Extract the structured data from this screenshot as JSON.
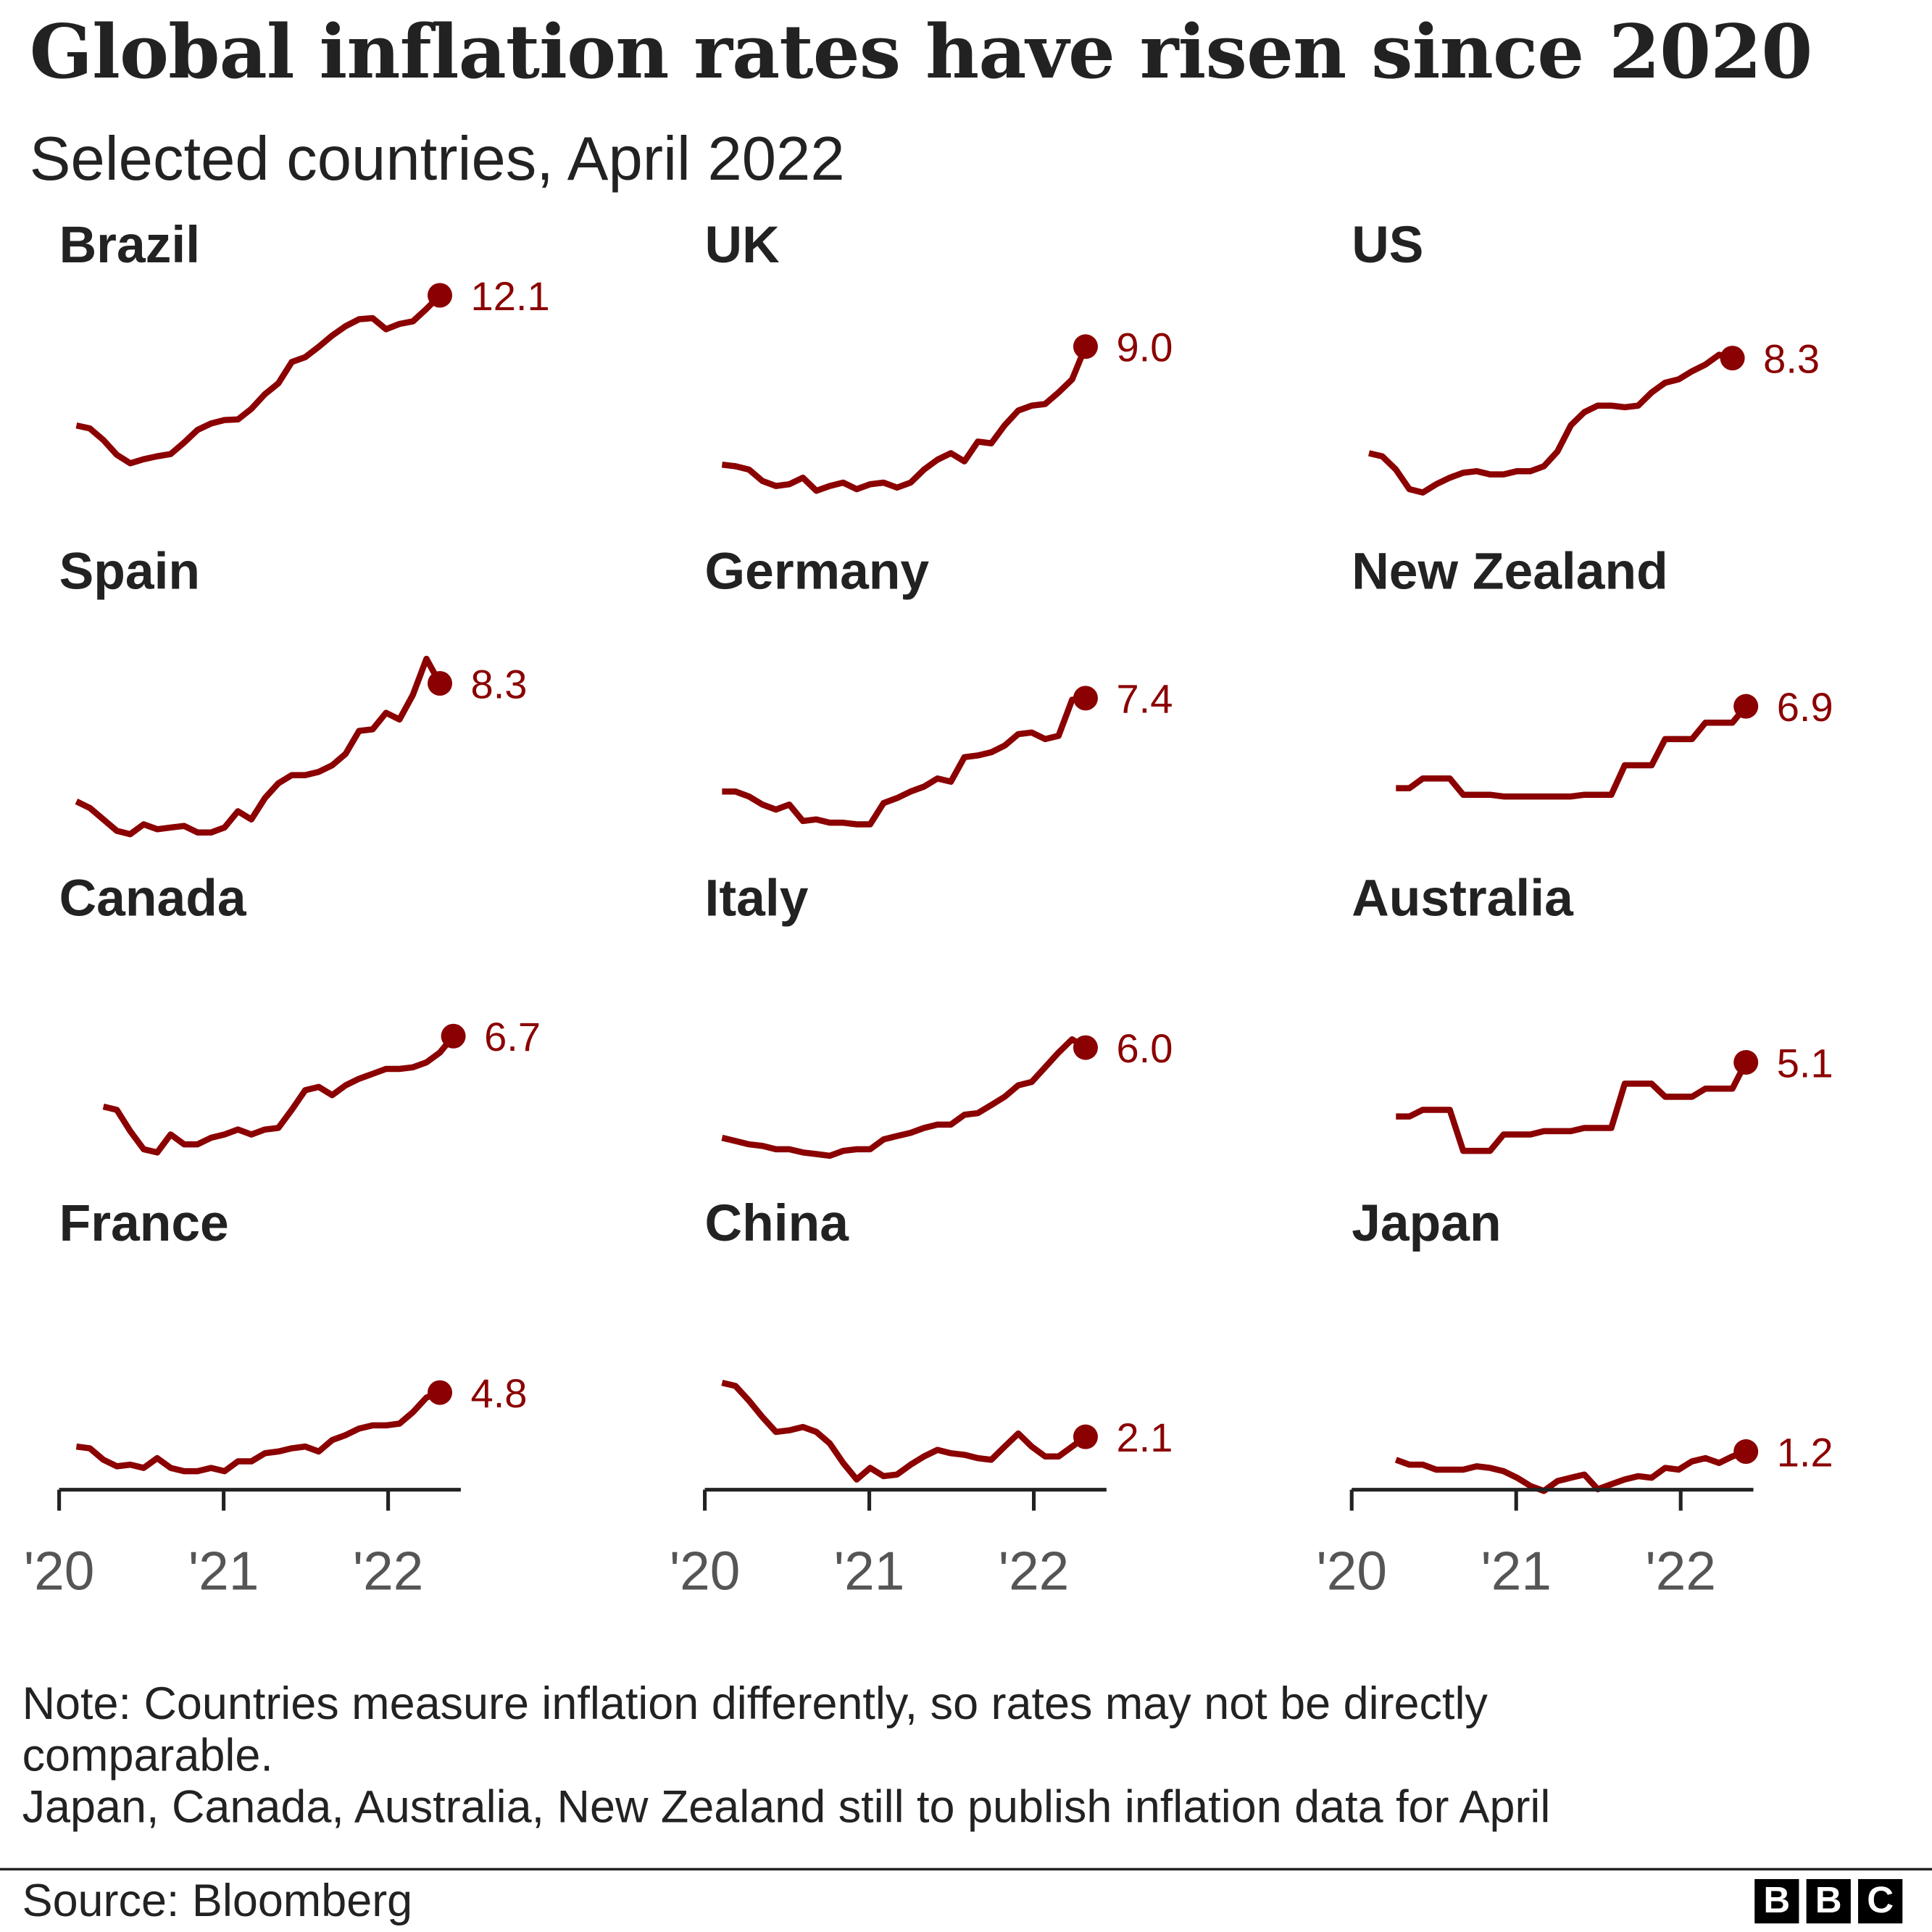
{
  "title": "Global inflation rates have risen since 2020",
  "subtitle": "Selected countries, April 2022",
  "notes": [
    "Note: Countries measure inflation differently, so rates may not be directly",
    "comparable.",
    "Japan, Canada, Australia, New Zealand still to publish inflation data for April"
  ],
  "source": "Source: Bloomberg",
  "logo_text": "BBC",
  "colors": {
    "line": "#8b0000",
    "label": "#8b0000",
    "axis": "#222222",
    "tick_label": "#555555"
  },
  "chart_data": {
    "type": "line",
    "layout": "small-multiples 3x4",
    "x_start": "2020-01",
    "x_ticks": [
      "'20",
      "'21",
      "'22"
    ],
    "y_unit": "% annual inflation",
    "shared_y_scale": true,
    "grid": false,
    "panels": [
      {
        "name": "Brazil",
        "last_label": "12.1",
        "values": [
          4.19,
          4.01,
          3.3,
          2.4,
          1.88,
          2.13,
          2.31,
          2.44,
          3.14,
          3.92,
          4.31,
          4.52,
          4.56,
          5.2,
          6.1,
          6.76,
          8.06,
          8.35,
          8.99,
          9.68,
          10.25,
          10.67,
          10.74,
          10.06,
          10.38,
          10.54,
          11.3,
          12.13
        ]
      },
      {
        "name": "UK",
        "last_label": "9.0",
        "values": [
          1.8,
          1.7,
          1.5,
          0.8,
          0.5,
          0.6,
          1.0,
          0.2,
          0.5,
          0.7,
          0.3,
          0.6,
          0.7,
          0.4,
          0.7,
          1.5,
          2.1,
          2.5,
          2.0,
          3.2,
          3.1,
          4.2,
          5.1,
          5.4,
          5.5,
          6.2,
          7.0,
          9.0
        ]
      },
      {
        "name": "US",
        "last_label": "8.3",
        "values": [
          2.5,
          2.3,
          1.5,
          0.3,
          0.1,
          0.6,
          1.0,
          1.3,
          1.4,
          1.2,
          1.2,
          1.4,
          1.4,
          1.7,
          2.6,
          4.2,
          5.0,
          5.4,
          5.4,
          5.3,
          5.4,
          6.2,
          6.8,
          7.0,
          7.5,
          7.9,
          8.5,
          8.3
        ]
      },
      {
        "name": "Spain",
        "last_label": "8.3",
        "values": [
          1.1,
          0.7,
          0.0,
          -0.7,
          -0.9,
          -0.3,
          -0.6,
          -0.5,
          -0.4,
          -0.8,
          -0.8,
          -0.5,
          0.5,
          0.0,
          1.3,
          2.2,
          2.7,
          2.7,
          2.9,
          3.3,
          4.0,
          5.4,
          5.5,
          6.5,
          6.1,
          7.6,
          9.8,
          8.3
        ]
      },
      {
        "name": "Germany",
        "last_label": "7.4",
        "values": [
          1.7,
          1.7,
          1.4,
          0.9,
          0.6,
          0.9,
          -0.1,
          0.0,
          -0.2,
          -0.2,
          -0.3,
          -0.3,
          1.0,
          1.3,
          1.7,
          2.0,
          2.5,
          2.3,
          3.8,
          3.9,
          4.1,
          4.5,
          5.2,
          5.3,
          4.9,
          5.1,
          7.3,
          7.4
        ]
      },
      {
        "name": "New Zealand",
        "last_label": "6.9",
        "values": [
          1.9,
          1.9,
          2.5,
          2.5,
          2.5,
          1.5,
          1.5,
          1.5,
          1.4,
          1.4,
          1.4,
          1.4,
          1.4,
          1.4,
          1.5,
          1.5,
          1.5,
          3.3,
          3.3,
          3.3,
          4.9,
          4.9,
          4.9,
          5.9,
          5.9,
          5.9,
          6.9
        ]
      },
      {
        "name": "Canada",
        "last_label": "6.7",
        "values": [
          2.4,
          2.2,
          0.9,
          -0.2,
          -0.4,
          0.7,
          0.1,
          0.1,
          0.5,
          0.7,
          1.0,
          0.7,
          1.0,
          1.1,
          2.2,
          3.4,
          3.6,
          3.1,
          3.7,
          4.1,
          4.4,
          4.7,
          4.7,
          4.8,
          5.1,
          5.7,
          6.7
        ]
      },
      {
        "name": "Italy",
        "last_label": "6.0",
        "values": [
          0.5,
          0.3,
          0.1,
          0.0,
          -0.2,
          -0.2,
          -0.4,
          -0.5,
          -0.6,
          -0.3,
          -0.2,
          -0.2,
          0.4,
          0.6,
          0.8,
          1.1,
          1.3,
          1.3,
          1.9,
          2.0,
          2.5,
          3.0,
          3.7,
          3.9,
          4.8,
          5.7,
          6.5,
          6.0
        ]
      },
      {
        "name": "Australia",
        "last_label": "5.1",
        "values": [
          1.8,
          1.8,
          2.2,
          2.2,
          2.2,
          -0.3,
          -0.3,
          -0.3,
          0.7,
          0.7,
          0.7,
          0.9,
          0.9,
          0.9,
          1.1,
          1.1,
          1.1,
          3.8,
          3.8,
          3.8,
          3.0,
          3.0,
          3.0,
          3.5,
          3.5,
          3.5,
          5.1
        ]
      },
      {
        "name": "France",
        "last_label": "4.8",
        "values": [
          1.5,
          1.4,
          0.7,
          0.3,
          0.4,
          0.2,
          0.8,
          0.2,
          0.0,
          0.0,
          0.2,
          0.0,
          0.6,
          0.6,
          1.1,
          1.2,
          1.4,
          1.5,
          1.2,
          1.9,
          2.2,
          2.6,
          2.8,
          2.8,
          2.9,
          3.6,
          4.5,
          4.8
        ]
      },
      {
        "name": "China",
        "last_label": "2.1",
        "values": [
          5.4,
          5.2,
          4.3,
          3.3,
          2.4,
          2.5,
          2.7,
          2.4,
          1.7,
          0.5,
          -0.5,
          0.2,
          -0.3,
          -0.2,
          0.4,
          0.9,
          1.3,
          1.1,
          1.0,
          0.8,
          0.7,
          1.5,
          2.3,
          1.5,
          0.9,
          0.9,
          1.5,
          2.1
        ]
      },
      {
        "name": "Japan",
        "last_label": "1.2",
        "values": [
          0.7,
          0.4,
          0.4,
          0.1,
          0.1,
          0.1,
          0.3,
          0.2,
          0.0,
          -0.4,
          -0.9,
          -1.2,
          -0.6,
          -0.4,
          -0.2,
          -1.1,
          -0.8,
          -0.5,
          -0.3,
          -0.4,
          0.2,
          0.1,
          0.6,
          0.8,
          0.5,
          0.9,
          1.2
        ]
      }
    ]
  }
}
